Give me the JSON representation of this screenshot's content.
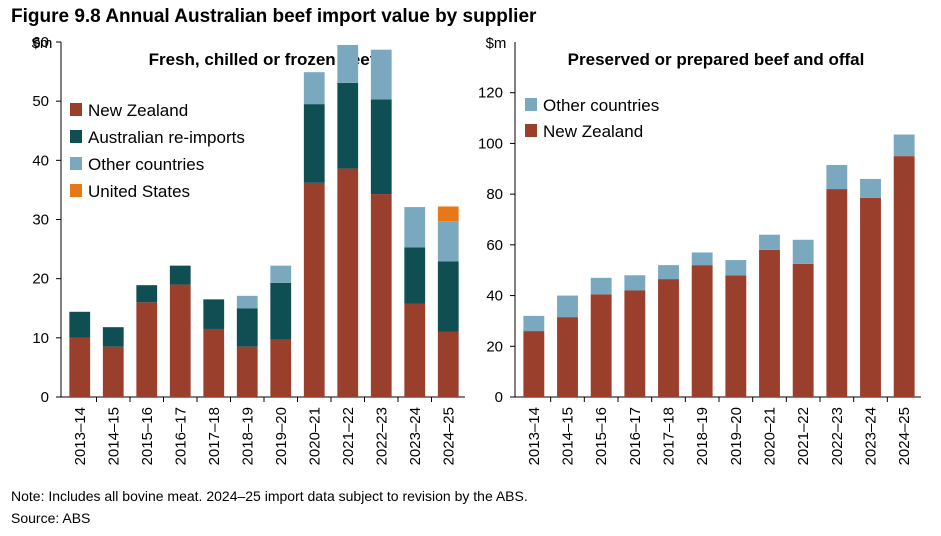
{
  "figure_title": "Figure 9.8 Annual Australian beef import value by supplier",
  "note": "Note: Includes all bovine meat. 2024–25 import data subject to revision by the ABS.",
  "source": "Source: ABS",
  "chart_data": [
    {
      "type": "bar",
      "stacked": true,
      "title": "Fresh, chilled or frozen beef",
      "ylabel": "$m",
      "ylim": [
        0,
        60
      ],
      "yticks": [
        0,
        10,
        20,
        30,
        40,
        50,
        60
      ],
      "categories": [
        "2013–14",
        "2014–15",
        "2015–16",
        "2016–17",
        "2017–18",
        "2018–19",
        "2019–20",
        "2020–21",
        "2021–22",
        "2022–23",
        "2023–24",
        "2024–25"
      ],
      "series": [
        {
          "name": "New Zealand",
          "color": "#9b3f2d",
          "values": [
            10.0,
            8.5,
            16.0,
            19.0,
            11.5,
            8.5,
            9.7,
            36.2,
            38.6,
            34.3,
            15.8,
            11.0
          ]
        },
        {
          "name": "Australian re-imports",
          "color": "#0f4e52",
          "values": [
            4.4,
            3.3,
            2.9,
            3.2,
            5.0,
            6.5,
            9.6,
            13.3,
            14.5,
            16.0,
            9.5,
            11.9
          ]
        },
        {
          "name": "Other countries",
          "color": "#7aa9bf",
          "values": [
            0,
            0,
            0,
            0,
            0,
            2.1,
            2.9,
            5.4,
            6.4,
            8.4,
            6.8,
            6.8
          ]
        },
        {
          "name": "United States",
          "color": "#e77818",
          "values": [
            0,
            0,
            0,
            0,
            0,
            0,
            0,
            0,
            0,
            0,
            0,
            2.5
          ]
        }
      ],
      "legend_order": [
        "New Zealand",
        "Australian re-imports",
        "Other countries",
        "United States"
      ],
      "legend_position": "top-left",
      "grid": false
    },
    {
      "type": "bar",
      "stacked": true,
      "title": "Preserved or prepared beef and offal",
      "ylabel": "$m",
      "ylim": [
        0,
        140
      ],
      "yticks": [
        0,
        20,
        40,
        60,
        80,
        100,
        120
      ],
      "categories": [
        "2013–14",
        "2014–15",
        "2015–16",
        "2016–17",
        "2017–18",
        "2018–19",
        "2019–20",
        "2020–21",
        "2021–22",
        "2022–23",
        "2023–24",
        "2024–25"
      ],
      "series": [
        {
          "name": "New Zealand",
          "color": "#9b3f2d",
          "values": [
            26,
            31.5,
            40.5,
            42,
            46.5,
            52,
            48,
            58,
            52.5,
            82,
            78.5,
            95
          ]
        },
        {
          "name": "Other countries",
          "color": "#7aa9bf",
          "values": [
            6,
            8.5,
            6.5,
            6,
            5.5,
            5,
            6,
            6,
            9.5,
            9.5,
            7.5,
            8.5
          ]
        }
      ],
      "legend_order": [
        "Other countries",
        "New Zealand"
      ],
      "legend_position": "top-left",
      "grid": false
    }
  ]
}
